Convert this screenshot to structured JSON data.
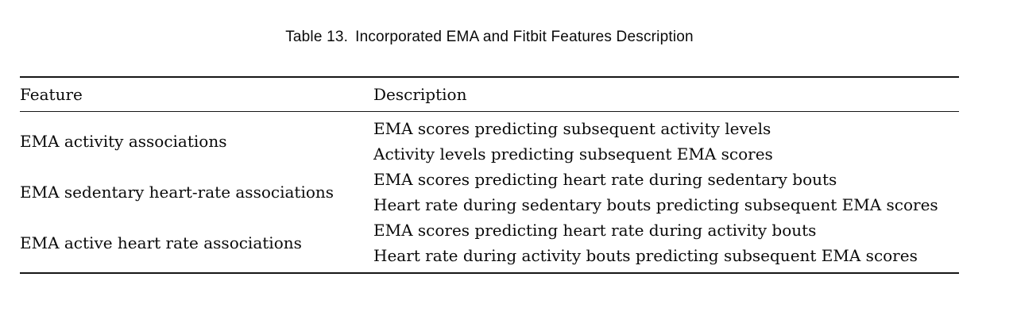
{
  "caption": {
    "label": "Table 13.",
    "title": "Incorporated EMA and Fitbit Features Description"
  },
  "table": {
    "headers": [
      "Feature",
      "Description"
    ],
    "rows": [
      {
        "feature": "EMA activity associations",
        "descriptions": [
          "EMA scores predicting subsequent activity levels",
          "Activity levels predicting subsequent EMA scores"
        ]
      },
      {
        "feature": "EMA sedentary heart-rate associations",
        "descriptions": [
          "EMA scores predicting heart rate during sedentary bouts",
          "Heart rate during sedentary bouts predicting subsequent EMA scores"
        ]
      },
      {
        "feature": "EMA active heart rate associations",
        "descriptions": [
          "EMA scores predicting heart rate during activity bouts",
          "Heart rate during activity bouts predicting subsequent EMA scores"
        ]
      }
    ]
  },
  "colors": {
    "text": "#0a0a0a",
    "rule": "#161616",
    "background": "#ffffff"
  }
}
